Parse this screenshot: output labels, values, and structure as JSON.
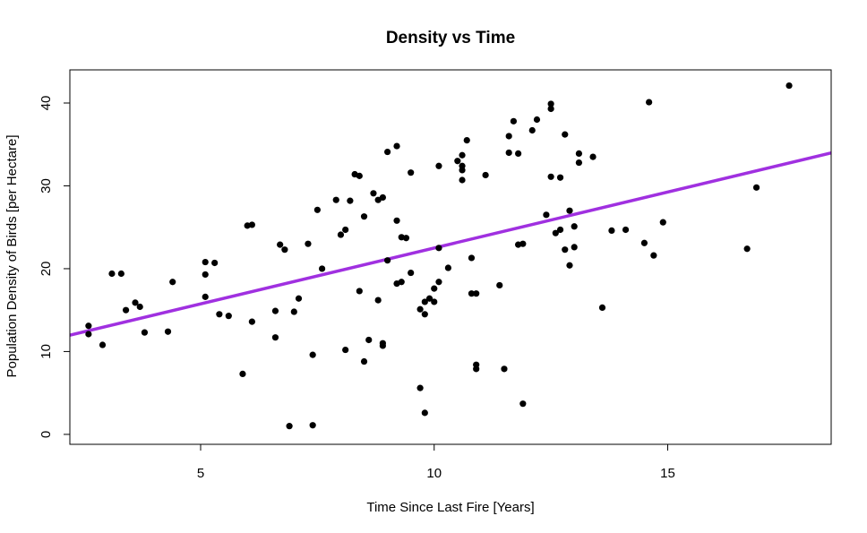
{
  "chart_data": {
    "type": "scatter",
    "title": "Density vs Time",
    "xlabel": "Time Since Last Fire [Years]",
    "ylabel": "Population Density of Birds [per Hectare]",
    "xlim": [
      2.2,
      18.5
    ],
    "ylim": [
      -1.2,
      44.0
    ],
    "x_ticks": [
      5,
      10,
      15
    ],
    "y_ticks": [
      0,
      10,
      20,
      30,
      40
    ],
    "grid": false,
    "point_color": "#000000",
    "line_color": "#a030e0",
    "regression_line": {
      "intercept": 9.0,
      "slope": 1.35
    },
    "points": [
      [
        2.6,
        12.1
      ],
      [
        2.6,
        13.1
      ],
      [
        2.9,
        10.8
      ],
      [
        3.1,
        19.4
      ],
      [
        3.3,
        19.4
      ],
      [
        3.4,
        15.0
      ],
      [
        3.6,
        15.9
      ],
      [
        3.7,
        15.4
      ],
      [
        3.8,
        12.3
      ],
      [
        4.3,
        12.4
      ],
      [
        4.4,
        18.4
      ],
      [
        5.1,
        20.8
      ],
      [
        5.1,
        19.3
      ],
      [
        5.1,
        16.6
      ],
      [
        5.3,
        20.7
      ],
      [
        5.4,
        14.5
      ],
      [
        5.6,
        14.3
      ],
      [
        5.9,
        7.3
      ],
      [
        6.0,
        25.2
      ],
      [
        6.1,
        25.3
      ],
      [
        6.1,
        13.6
      ],
      [
        6.6,
        14.9
      ],
      [
        6.6,
        11.7
      ],
      [
        6.7,
        22.9
      ],
      [
        6.8,
        22.3
      ],
      [
        6.9,
        1.0
      ],
      [
        7.0,
        14.8
      ],
      [
        7.1,
        16.4
      ],
      [
        7.3,
        23.0
      ],
      [
        7.4,
        9.6
      ],
      [
        7.4,
        1.1
      ],
      [
        7.5,
        27.1
      ],
      [
        7.6,
        20.0
      ],
      [
        7.9,
        28.3
      ],
      [
        8.0,
        24.1
      ],
      [
        8.1,
        24.7
      ],
      [
        8.1,
        10.2
      ],
      [
        8.2,
        28.2
      ],
      [
        8.3,
        31.4
      ],
      [
        8.4,
        31.2
      ],
      [
        8.4,
        17.3
      ],
      [
        8.5,
        8.8
      ],
      [
        8.5,
        26.3
      ],
      [
        8.6,
        11.4
      ],
      [
        8.7,
        29.1
      ],
      [
        8.8,
        28.3
      ],
      [
        8.8,
        16.2
      ],
      [
        8.9,
        28.6
      ],
      [
        9.0,
        34.1
      ],
      [
        9.0,
        21.0
      ],
      [
        8.9,
        11.0
      ],
      [
        8.9,
        10.7
      ],
      [
        9.2,
        34.8
      ],
      [
        9.2,
        25.8
      ],
      [
        9.2,
        18.2
      ],
      [
        9.3,
        23.8
      ],
      [
        9.3,
        18.4
      ],
      [
        9.4,
        23.7
      ],
      [
        9.5,
        31.6
      ],
      [
        9.5,
        19.5
      ],
      [
        9.7,
        5.6
      ],
      [
        9.7,
        15.1
      ],
      [
        9.8,
        14.5
      ],
      [
        9.8,
        2.6
      ],
      [
        9.8,
        16.0
      ],
      [
        9.9,
        16.4
      ],
      [
        10.0,
        16.0
      ],
      [
        10.0,
        17.6
      ],
      [
        10.1,
        32.4
      ],
      [
        10.1,
        22.5
      ],
      [
        10.1,
        18.4
      ],
      [
        10.3,
        20.1
      ],
      [
        10.5,
        33.0
      ],
      [
        10.6,
        32.4
      ],
      [
        10.6,
        31.9
      ],
      [
        10.6,
        30.7
      ],
      [
        10.6,
        33.7
      ],
      [
        10.7,
        35.5
      ],
      [
        10.8,
        21.3
      ],
      [
        10.8,
        17.0
      ],
      [
        10.9,
        8.4
      ],
      [
        10.9,
        17.0
      ],
      [
        10.9,
        7.9
      ],
      [
        11.1,
        31.3
      ],
      [
        11.4,
        18.0
      ],
      [
        11.5,
        7.9
      ],
      [
        11.6,
        36.0
      ],
      [
        11.7,
        37.8
      ],
      [
        11.6,
        34.0
      ],
      [
        11.8,
        33.9
      ],
      [
        11.8,
        22.9
      ],
      [
        11.9,
        3.7
      ],
      [
        11.9,
        23.0
      ],
      [
        12.1,
        36.7
      ],
      [
        12.2,
        38.0
      ],
      [
        12.4,
        26.5
      ],
      [
        12.5,
        39.3
      ],
      [
        12.5,
        39.9
      ],
      [
        12.5,
        31.1
      ],
      [
        12.6,
        24.3
      ],
      [
        12.7,
        24.7
      ],
      [
        12.7,
        31.0
      ],
      [
        12.8,
        36.2
      ],
      [
        12.8,
        22.3
      ],
      [
        12.9,
        20.4
      ],
      [
        12.9,
        27.0
      ],
      [
        13.0,
        22.6
      ],
      [
        13.0,
        25.1
      ],
      [
        13.1,
        33.9
      ],
      [
        13.1,
        32.8
      ],
      [
        13.4,
        33.5
      ],
      [
        13.6,
        15.3
      ],
      [
        13.8,
        24.6
      ],
      [
        14.1,
        24.7
      ],
      [
        14.5,
        23.1
      ],
      [
        14.6,
        40.1
      ],
      [
        14.7,
        21.6
      ],
      [
        14.9,
        25.6
      ],
      [
        16.7,
        22.4
      ],
      [
        16.9,
        29.8
      ],
      [
        17.6,
        42.1
      ]
    ]
  }
}
